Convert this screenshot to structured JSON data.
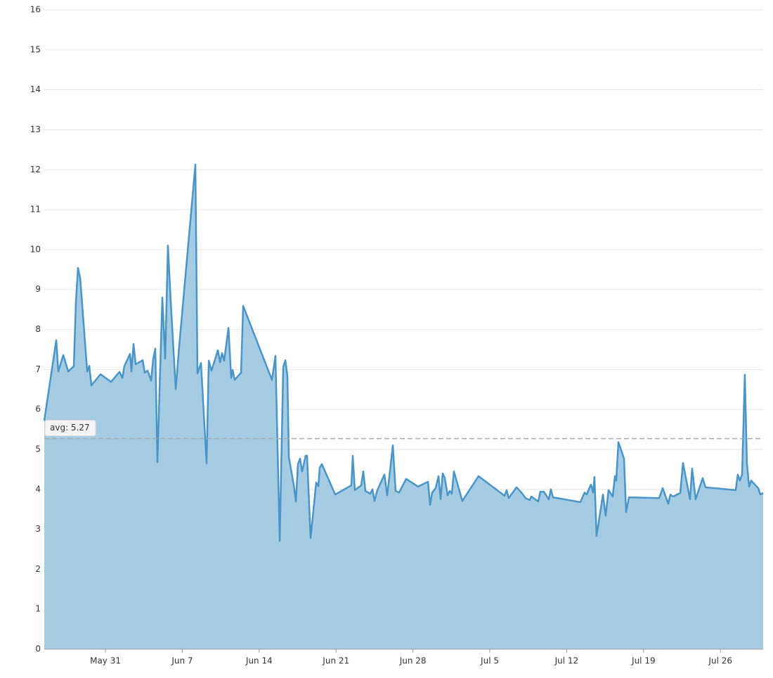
{
  "chart_data": {
    "type": "area",
    "x": [
      145.43,
      146.52,
      146.71,
      147.16,
      147.61,
      148.12,
      148.31,
      148.5,
      148.7,
      149.34,
      149.53,
      149.72,
      150.55,
      151.51,
      152.28,
      152.54,
      152.73,
      153.24,
      153.37,
      153.56,
      153.75,
      154.39,
      154.58,
      154.84,
      155.16,
      155.35,
      155.54,
      155.73,
      156.18,
      156.44,
      156.69,
      156.95,
      157.4,
      157.72,
      159.19,
      159.38,
      159.7,
      160.21,
      160.41,
      160.66,
      161.24,
      161.43,
      161.62,
      161.81,
      162.2,
      162.45,
      162.58,
      162.77,
      163.35,
      163.54,
      166.16,
      166.48,
      166.87,
      167.19,
      167.38,
      167.57,
      167.7,
      168.15,
      168.34,
      168.53,
      168.72,
      168.91,
      169.23,
      169.36,
      169.68,
      170.19,
      170.39,
      170.51,
      170.71,
      171.92,
      173.39,
      173.52,
      173.71,
      174.29,
      174.48,
      174.67,
      175.12,
      175.31,
      175.5,
      175.76,
      176.4,
      176.66,
      177.17,
      177.42,
      177.74,
      178.38,
      179.47,
      180.37,
      180.56,
      180.75,
      181.07,
      181.33,
      181.52,
      181.71,
      181.9,
      182.16,
      182.35,
      182.54,
      182.73,
      183.5,
      184.97,
      187.34,
      187.53,
      187.72,
      188.43,
      188.88,
      189.26,
      189.64,
      189.77,
      190.41,
      190.6,
      190.92,
      191.37,
      191.56,
      191.75,
      194.25,
      194.63,
      194.83,
      195.02,
      195.21,
      195.4,
      195.53,
      195.72,
      196.3,
      196.55,
      196.81,
      197.19,
      197.39,
      197.51,
      197.71,
      198.22,
      198.41,
      198.67,
      201.42,
      201.74,
      202.25,
      202.44,
      202.7,
      203.34,
      203.59,
      204.23,
      204.42,
      204.74,
      205.38,
      205.64,
      208.39,
      208.58,
      208.77,
      208.97,
      209.22,
      209.41,
      209.61,
      209.8,
      210.44,
      210.63,
      210.89
    ],
    "values": [
      5.72,
      7.73,
      6.95,
      7.36,
      6.95,
      7.08,
      8.68,
      9.54,
      9.29,
      6.95,
      7.09,
      6.6,
      6.88,
      6.69,
      6.94,
      6.79,
      7.09,
      7.39,
      6.95,
      7.64,
      7.13,
      7.23,
      6.92,
      6.97,
      6.72,
      7.27,
      7.52,
      4.68,
      8.8,
      7.27,
      10.1,
      8.68,
      6.51,
      7.6,
      12.13,
      6.9,
      7.16,
      4.65,
      7.22,
      6.97,
      7.48,
      7.18,
      7.41,
      7.22,
      8.04,
      6.79,
      6.99,
      6.74,
      6.92,
      8.59,
      6.74,
      7.34,
      2.71,
      7.06,
      7.23,
      6.83,
      4.81,
      4.1,
      3.7,
      4.63,
      4.77,
      4.45,
      4.84,
      4.84,
      2.78,
      4.17,
      4.08,
      4.54,
      4.63,
      3.87,
      4.1,
      4.84,
      3.98,
      4.1,
      4.45,
      3.96,
      3.89,
      4.0,
      3.71,
      3.98,
      4.37,
      3.85,
      5.1,
      3.96,
      3.92,
      4.26,
      4.07,
      4.19,
      3.61,
      3.92,
      4.03,
      4.33,
      3.75,
      4.4,
      4.28,
      3.85,
      3.96,
      3.89,
      4.45,
      3.71,
      4.33,
      3.84,
      3.98,
      3.78,
      4.05,
      3.92,
      3.78,
      3.73,
      3.82,
      3.7,
      3.94,
      3.94,
      3.75,
      4.0,
      3.8,
      3.68,
      3.92,
      3.87,
      4.01,
      4.12,
      3.92,
      4.31,
      2.83,
      3.87,
      3.34,
      3.98,
      3.82,
      4.33,
      4.22,
      5.18,
      4.77,
      3.43,
      3.8,
      3.78,
      4.03,
      3.64,
      3.87,
      3.82,
      3.91,
      4.66,
      3.75,
      4.52,
      3.75,
      4.28,
      4.05,
      3.98,
      4.37,
      4.22,
      4.37,
      6.87,
      4.66,
      4.07,
      4.22,
      4.03,
      3.87,
      3.91
    ],
    "color": "#4a95c8",
    "fill_color": "#a6cce4",
    "xlim": [
      145.43,
      210.89
    ],
    "xticks": [
      {
        "value": 151,
        "label": "May 31"
      },
      {
        "value": 158,
        "label": "Jun 7"
      },
      {
        "value": 165,
        "label": "Jun 14"
      },
      {
        "value": 172,
        "label": "Jun 21"
      },
      {
        "value": 179,
        "label": "Jun 28"
      },
      {
        "value": 186,
        "label": "Jul 5"
      },
      {
        "value": 193,
        "label": "Jul 12"
      },
      {
        "value": 200,
        "label": "Jul 19"
      },
      {
        "value": 207,
        "label": "Jul 26"
      }
    ],
    "ylim": [
      0,
      16
    ],
    "yticks": [
      0,
      1,
      2,
      3,
      4,
      5,
      6,
      7,
      8,
      9,
      10,
      11,
      12,
      13,
      14,
      15,
      16
    ],
    "grid": true,
    "reference_line": {
      "value": 5.27,
      "label": "avg: 5.27"
    }
  }
}
